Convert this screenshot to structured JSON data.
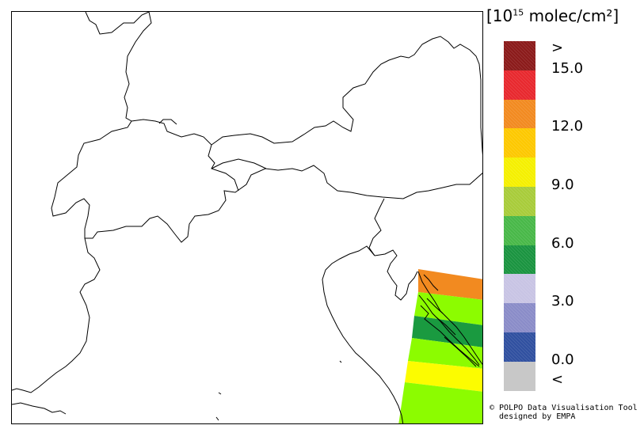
{
  "legend": {
    "unit_pre": "[10",
    "unit_exp": "15",
    "unit_post": " molec/cm²]",
    "labels": [
      {
        "text": ">",
        "row": 0
      },
      {
        "text": "15.0",
        "row": 1
      },
      {
        "text": "12.0",
        "row": 3
      },
      {
        "text": "9.0",
        "row": 5
      },
      {
        "text": "6.0",
        "row": 7
      },
      {
        "text": "3.0",
        "row": 9
      },
      {
        "text": "0.0",
        "row": 11
      },
      {
        "text": "<",
        "row": 12
      }
    ],
    "colors": [
      "#8b1a1a",
      "#e8282e",
      "#f28a20",
      "#fdc800",
      "#f5f000",
      "#a8cc3a",
      "#48b848",
      "#1a9440",
      "#c8c4e4",
      "#8a8cc8",
      "#3050a0",
      "#c8c8c8"
    ]
  },
  "swath_colors": {
    "orange": "#f28a20",
    "light_green": "#8cfc00",
    "dark_green": "#1a9a40",
    "yellow": "#fcfc00"
  },
  "credit": {
    "line1": "© POLPO Data Visualisation Tool",
    "line2": "  designed by EMPA"
  }
}
